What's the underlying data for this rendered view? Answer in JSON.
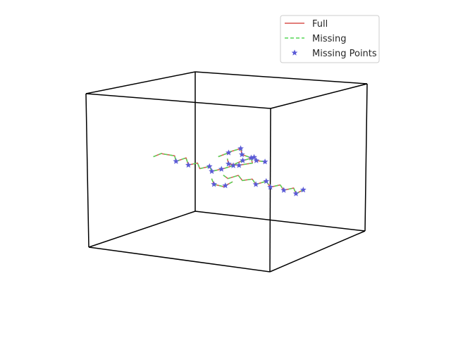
{
  "chart_data": {
    "type": "line",
    "projection": "3d",
    "title": "",
    "xlabel": "",
    "ylabel": "",
    "zlabel": "",
    "grid": false,
    "axes_visible": false,
    "legend_position": "top-right",
    "xlim": [
      -1.0,
      1.0
    ],
    "ylim": [
      -1.0,
      1.0
    ],
    "zlim": [
      -1.0,
      1.0
    ],
    "series": [
      {
        "name": "Full",
        "style": "solid",
        "color": "#d9534f",
        "segments": [
          [
            [
              -0.8,
              -0.1,
              0.0
            ],
            [
              -0.74,
              -0.05,
              0.04
            ],
            [
              -0.68,
              -0.12,
              0.06
            ],
            [
              -0.6,
              -0.04,
              0.03
            ],
            [
              -0.55,
              -0.1,
              -0.02
            ],
            [
              -0.48,
              -0.03,
              0.02
            ],
            [
              -0.42,
              -0.09,
              -0.05
            ],
            [
              -0.36,
              -0.02,
              -0.03
            ],
            [
              -0.3,
              -0.08,
              -0.08
            ],
            [
              -0.24,
              0.0,
              -0.06
            ],
            [
              -0.18,
              -0.06,
              -0.1
            ],
            [
              -0.12,
              0.02,
              -0.08
            ],
            [
              -0.06,
              -0.04,
              -0.05
            ],
            [
              0.0,
              0.04,
              -0.02
            ],
            [
              0.05,
              -0.02,
              0.02
            ],
            [
              0.1,
              0.05,
              0.06
            ],
            [
              0.16,
              -0.01,
              0.09
            ],
            [
              0.22,
              0.06,
              0.12
            ],
            [
              0.28,
              0.0,
              0.1
            ],
            [
              0.34,
              0.06,
              0.08
            ]
          ],
          [
            [
              -0.2,
              0.1,
              0.05
            ],
            [
              -0.12,
              0.16,
              0.1
            ],
            [
              -0.06,
              0.08,
              0.14
            ],
            [
              0.02,
              0.15,
              0.18
            ],
            [
              0.08,
              0.07,
              0.13
            ],
            [
              0.14,
              0.14,
              0.08
            ],
            [
              0.2,
              0.06,
              0.04
            ],
            [
              0.12,
              0.0,
              0.02
            ],
            [
              0.04,
              0.08,
              -0.02
            ],
            [
              -0.04,
              0.02,
              0.0
            ],
            [
              -0.1,
              0.1,
              0.04
            ]
          ],
          [
            [
              0.0,
              -0.15,
              -0.1
            ],
            [
              0.08,
              -0.2,
              -0.12
            ],
            [
              0.16,
              -0.14,
              -0.08
            ],
            [
              0.24,
              -0.2,
              -0.12
            ],
            [
              0.32,
              -0.15,
              -0.1
            ],
            [
              0.4,
              -0.22,
              -0.14
            ],
            [
              0.48,
              -0.16,
              -0.1
            ],
            [
              0.56,
              -0.22,
              -0.15
            ],
            [
              0.64,
              -0.17,
              -0.12
            ],
            [
              0.72,
              -0.24,
              -0.16
            ],
            [
              0.8,
              -0.19,
              -0.13
            ],
            [
              0.86,
              -0.25,
              -0.18
            ],
            [
              0.9,
              -0.18,
              -0.14
            ]
          ],
          [
            [
              -0.1,
              -0.2,
              -0.15
            ],
            [
              -0.04,
              -0.26,
              -0.2
            ],
            [
              0.02,
              -0.18,
              -0.24
            ],
            [
              0.08,
              -0.25,
              -0.2
            ],
            [
              0.12,
              -0.18,
              -0.16
            ]
          ]
        ]
      },
      {
        "name": "Missing",
        "style": "dashed",
        "color": "#55d655",
        "segments": [
          [
            [
              -0.8,
              -0.1,
              0.0
            ],
            [
              -0.74,
              -0.05,
              0.04
            ],
            [
              -0.68,
              -0.12,
              0.06
            ],
            [
              -0.6,
              -0.04,
              0.03
            ],
            [
              -0.55,
              -0.1,
              -0.02
            ],
            [
              -0.48,
              -0.03,
              0.02
            ],
            [
              -0.42,
              -0.09,
              -0.05
            ],
            [
              -0.36,
              -0.02,
              -0.03
            ],
            [
              -0.3,
              -0.08,
              -0.08
            ],
            [
              -0.24,
              0.0,
              -0.06
            ],
            [
              -0.18,
              -0.06,
              -0.1
            ],
            [
              -0.12,
              0.02,
              -0.08
            ],
            [
              -0.06,
              -0.04,
              -0.05
            ],
            [
              0.0,
              0.04,
              -0.02
            ],
            [
              0.05,
              -0.02,
              0.02
            ],
            [
              0.1,
              0.05,
              0.06
            ],
            [
              0.16,
              -0.01,
              0.09
            ],
            [
              0.22,
              0.06,
              0.12
            ],
            [
              0.28,
              0.0,
              0.1
            ],
            [
              0.34,
              0.06,
              0.08
            ]
          ],
          [
            [
              -0.2,
              0.1,
              0.05
            ],
            [
              -0.12,
              0.16,
              0.1
            ],
            [
              -0.06,
              0.08,
              0.14
            ],
            [
              0.02,
              0.15,
              0.18
            ],
            [
              0.08,
              0.07,
              0.13
            ],
            [
              0.14,
              0.14,
              0.08
            ],
            [
              0.2,
              0.06,
              0.04
            ],
            [
              0.12,
              0.0,
              0.02
            ],
            [
              0.04,
              0.08,
              -0.02
            ],
            [
              -0.04,
              0.02,
              0.0
            ],
            [
              -0.1,
              0.1,
              0.04
            ]
          ],
          [
            [
              0.0,
              -0.15,
              -0.1
            ],
            [
              0.08,
              -0.2,
              -0.12
            ],
            [
              0.16,
              -0.14,
              -0.08
            ],
            [
              0.24,
              -0.2,
              -0.12
            ],
            [
              0.32,
              -0.15,
              -0.1
            ],
            [
              0.4,
              -0.22,
              -0.14
            ],
            [
              0.48,
              -0.16,
              -0.1
            ],
            [
              0.56,
              -0.22,
              -0.15
            ],
            [
              0.64,
              -0.17,
              -0.12
            ],
            [
              0.72,
              -0.24,
              -0.16
            ],
            [
              0.8,
              -0.19,
              -0.13
            ],
            [
              0.86,
              -0.25,
              -0.18
            ],
            [
              0.9,
              -0.18,
              -0.14
            ]
          ],
          [
            [
              -0.1,
              -0.2,
              -0.15
            ],
            [
              -0.04,
              -0.26,
              -0.2
            ],
            [
              0.02,
              -0.18,
              -0.24
            ],
            [
              0.08,
              -0.25,
              -0.2
            ],
            [
              0.12,
              -0.18,
              -0.16
            ]
          ]
        ]
      },
      {
        "name": "Missing Points",
        "style": "markers",
        "marker": "star",
        "color": "#5b5bd6",
        "points": [
          [
            -0.55,
            -0.1,
            -0.02
          ],
          [
            -0.42,
            -0.09,
            -0.05
          ],
          [
            -0.24,
            0.0,
            -0.06
          ],
          [
            -0.12,
            0.02,
            -0.08
          ],
          [
            0.0,
            0.04,
            -0.02
          ],
          [
            0.1,
            0.05,
            0.06
          ],
          [
            0.22,
            0.06,
            0.12
          ],
          [
            0.34,
            0.06,
            0.08
          ],
          [
            -0.12,
            0.16,
            0.1
          ],
          [
            0.02,
            0.15,
            0.18
          ],
          [
            0.14,
            0.14,
            0.08
          ],
          [
            0.04,
            0.08,
            -0.02
          ],
          [
            -0.04,
            0.02,
            0.0
          ],
          [
            0.4,
            -0.22,
            -0.14
          ],
          [
            0.56,
            -0.22,
            -0.15
          ],
          [
            0.72,
            -0.24,
            -0.16
          ],
          [
            0.86,
            -0.25,
            -0.18
          ],
          [
            0.9,
            -0.18,
            -0.14
          ],
          [
            -0.04,
            -0.26,
            -0.2
          ],
          [
            0.08,
            -0.25,
            -0.2
          ],
          [
            -0.18,
            -0.06,
            -0.1
          ],
          [
            0.28,
            0.0,
            0.1
          ],
          [
            0.08,
            0.07,
            0.13
          ],
          [
            0.48,
            -0.16,
            -0.1
          ]
        ]
      }
    ]
  }
}
